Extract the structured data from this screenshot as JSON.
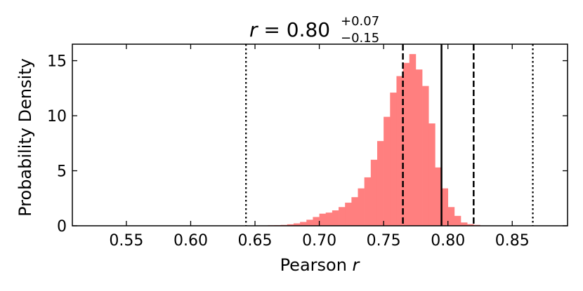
{
  "chart_data": {
    "type": "bar",
    "title": {
      "main": "r = 0.80",
      "italic_symbol": "r",
      "equals": " = ",
      "value": "0.80",
      "upper": "+0.07",
      "lower": "−0.15"
    },
    "xlabel": "Pearson r",
    "xlabel_text": "Pearson ",
    "xlabel_symbol": "r",
    "ylabel": "Probability Density",
    "xlim": [
      0.508,
      0.893
    ],
    "ylim": [
      0,
      16.5
    ],
    "xticks": [
      0.55,
      0.6,
      0.65,
      0.7,
      0.75,
      0.8,
      0.85
    ],
    "xtick_labels": [
      "0.55",
      "0.60",
      "0.65",
      "0.70",
      "0.75",
      "0.80",
      "0.85"
    ],
    "yticks": [
      0,
      5,
      10,
      15
    ],
    "ytick_labels": [
      "0",
      "5",
      "10",
      "15"
    ],
    "grid": false,
    "bar_color": "#ff7f7f",
    "bins": {
      "start": 0.65,
      "width": 0.005,
      "values": [
        0.02,
        0.03,
        0.05,
        0.06,
        0.08,
        0.14,
        0.22,
        0.35,
        0.55,
        0.8,
        1.1,
        1.2,
        1.4,
        1.7,
        2.1,
        2.6,
        3.4,
        4.4,
        6.0,
        7.7,
        9.9,
        12.1,
        13.6,
        14.8,
        15.6,
        14.2,
        12.7,
        9.3,
        5.3,
        3.4,
        1.7,
        0.9,
        0.3,
        0.15,
        0.08,
        0.03,
        0.02
      ]
    },
    "vertical_lines": [
      {
        "x": 0.643,
        "style": "dotted"
      },
      {
        "x": 0.765,
        "style": "dashed"
      },
      {
        "x": 0.795,
        "style": "solid"
      },
      {
        "x": 0.82,
        "style": "dashed"
      },
      {
        "x": 0.866,
        "style": "dotted"
      }
    ]
  }
}
